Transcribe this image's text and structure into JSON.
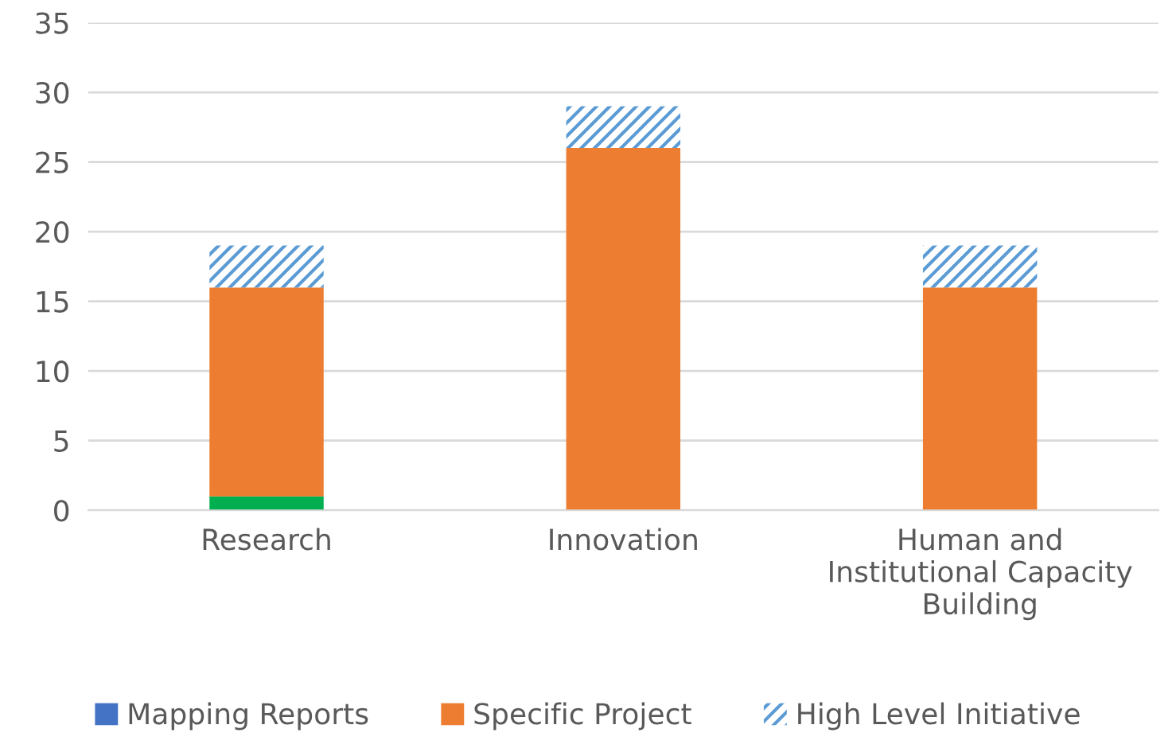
{
  "chart_data": {
    "type": "bar",
    "stacked": true,
    "categories": [
      "Research",
      "Innovation",
      "Human and\nInstitutional Capacity\nBuilding"
    ],
    "series": [
      {
        "name": "Mapping Reports",
        "color": "#4472c4",
        "values": [
          0,
          0,
          0
        ]
      },
      {
        "color": "#00b050",
        "values": [
          1,
          0,
          0
        ]
      },
      {
        "name": "Specific Project",
        "color": "#ed7d31",
        "values": [
          15,
          26,
          16
        ]
      },
      {
        "name": "High Level Initiative",
        "color": "#5b9bd5",
        "values": [
          3,
          3,
          3
        ]
      }
    ],
    "ylim": [
      0,
      35
    ],
    "yticks": [
      0,
      5,
      10,
      15,
      20,
      25,
      30,
      35
    ],
    "grid": "y",
    "legend": "bottom"
  }
}
